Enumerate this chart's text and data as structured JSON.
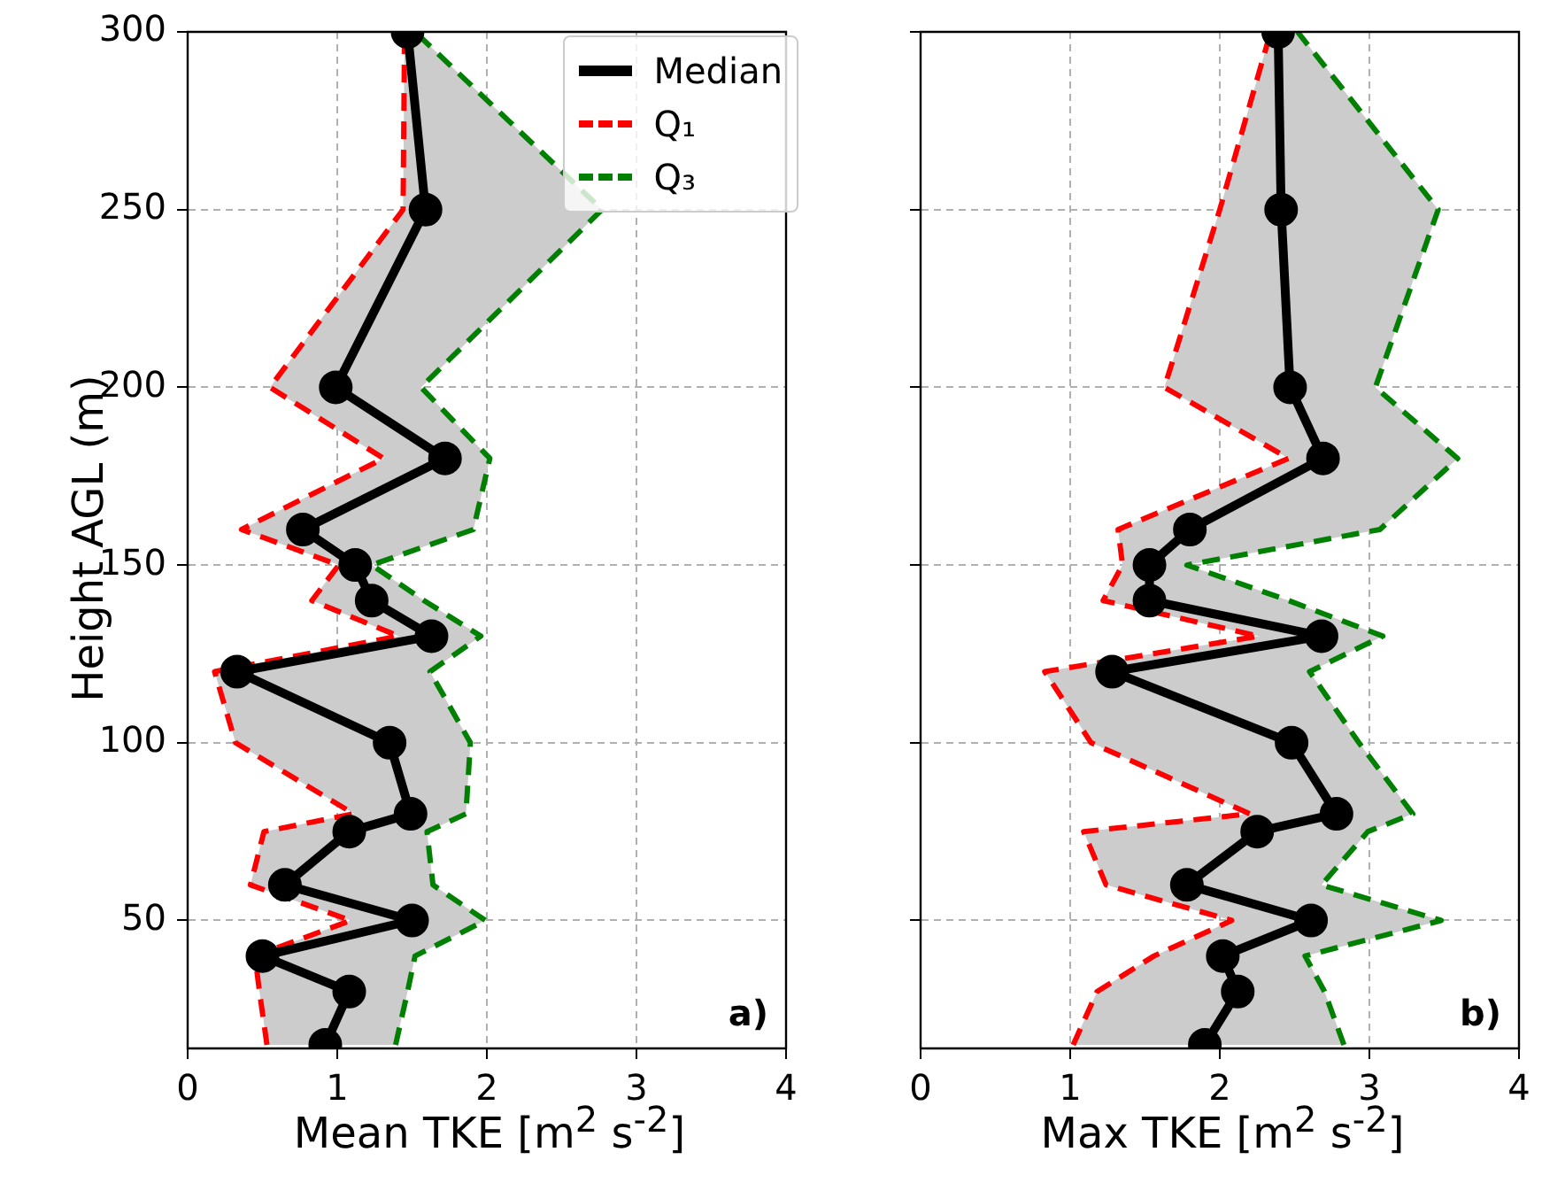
{
  "chart_data": [
    {
      "type": "line",
      "orientation": "horizontal",
      "ylabel": "Height AGL (m)",
      "xlabel": "Mean TKE [m$^{2}$ s$^{-2}$]",
      "xlim": [
        0,
        4
      ],
      "xticks": [
        0,
        1,
        2,
        3,
        4
      ],
      "ylim": [
        14,
        300
      ],
      "yticks": [
        50,
        100,
        150,
        200,
        250,
        300
      ],
      "grid": true,
      "legend": "top right",
      "annotations": [
        "a)"
      ],
      "series": [
        {
          "name": "Median",
          "color": "#000000",
          "marker": "circle",
          "line_style": "solid",
          "x": [
            15,
            30,
            40,
            50,
            60,
            75,
            80,
            100,
            120,
            130,
            140,
            150,
            160,
            180,
            200,
            250,
            300
          ],
          "values": [
            0.92,
            1.08,
            0.5,
            1.5,
            0.65,
            1.08,
            1.49,
            1.35,
            0.33,
            1.63,
            1.23,
            1.12,
            0.77,
            1.72,
            0.99,
            1.59,
            1.47
          ],
          "lower": [
            0.53,
            0.48,
            0.45,
            1.09,
            0.42,
            0.51,
            1.11,
            0.32,
            0.18,
            1.41,
            0.83,
            1.01,
            0.36,
            1.31,
            0.55,
            1.44,
            1.45
          ],
          "upper": [
            1.39,
            1.47,
            1.52,
            1.99,
            1.64,
            1.6,
            1.86,
            1.89,
            1.62,
            1.96,
            1.58,
            1.23,
            1.91,
            2.02,
            1.56,
            2.77,
            1.52
          ]
        },
        {
          "name": "Q₁",
          "color": "#ff0000",
          "marker": "none",
          "line_style": "dashed",
          "x": [
            15,
            30,
            40,
            50,
            60,
            75,
            80,
            100,
            120,
            130,
            140,
            150,
            160,
            180,
            200,
            250,
            300
          ],
          "values": [
            0.53,
            0.48,
            0.45,
            1.09,
            0.42,
            0.51,
            1.11,
            0.32,
            0.18,
            1.41,
            0.83,
            1.01,
            0.36,
            1.31,
            0.55,
            1.44,
            1.45
          ]
        },
        {
          "name": "Q₃",
          "color": "#008000",
          "marker": "none",
          "line_style": "dashed",
          "x": [
            15,
            30,
            40,
            50,
            60,
            75,
            80,
            100,
            120,
            130,
            140,
            150,
            160,
            180,
            200,
            250,
            300
          ],
          "values": [
            1.39,
            1.47,
            1.52,
            1.99,
            1.64,
            1.6,
            1.86,
            1.89,
            1.62,
            1.96,
            1.58,
            1.23,
            1.91,
            2.02,
            1.56,
            2.77,
            1.52
          ]
        }
      ]
    },
    {
      "type": "line",
      "orientation": "horizontal",
      "xlabel": "Max TKE [m$^{2}$ s$^{-2}$]",
      "xlim": [
        0,
        4
      ],
      "xticks": [
        0,
        1,
        2,
        3,
        4
      ],
      "ylim": [
        14,
        300
      ],
      "yticks": [
        50,
        100,
        150,
        200,
        250,
        300
      ],
      "grid": true,
      "tick_labels": "x",
      "annotations": [
        "b)"
      ],
      "series": [
        {
          "color": "#000000",
          "marker": "circle",
          "line_style": "solid",
          "x": [
            15,
            30,
            40,
            50,
            60,
            75,
            80,
            100,
            120,
            130,
            140,
            150,
            160,
            180,
            200,
            250,
            300
          ],
          "values": [
            1.9,
            2.12,
            2.02,
            2.61,
            1.78,
            2.25,
            2.78,
            2.48,
            1.28,
            2.68,
            1.53,
            1.53,
            1.8,
            2.69,
            2.47,
            2.41,
            2.39
          ],
          "lower": [
            1.02,
            1.18,
            1.56,
            2.08,
            1.24,
            1.09,
            2.2,
            1.14,
            0.83,
            2.26,
            1.22,
            1.35,
            1.32,
            2.46,
            1.63,
            2.0,
            2.34
          ],
          "upper": [
            2.83,
            2.7,
            2.57,
            3.48,
            2.68,
            2.99,
            3.29,
            2.93,
            2.6,
            3.09,
            2.46,
            1.78,
            3.07,
            3.59,
            3.04,
            3.46,
            2.52
          ]
        },
        {
          "color": "#ff0000",
          "marker": "none",
          "line_style": "dashed",
          "x": [
            15,
            30,
            40,
            50,
            60,
            75,
            80,
            100,
            120,
            130,
            140,
            150,
            160,
            180,
            200,
            250,
            300
          ],
          "values": [
            1.02,
            1.18,
            1.56,
            2.08,
            1.24,
            1.09,
            2.2,
            1.14,
            0.83,
            2.26,
            1.22,
            1.35,
            1.32,
            2.46,
            1.63,
            2.0,
            2.34
          ]
        },
        {
          "color": "#008000",
          "marker": "none",
          "line_style": "dashed",
          "x": [
            15,
            30,
            40,
            50,
            60,
            75,
            80,
            100,
            120,
            130,
            140,
            150,
            160,
            180,
            200,
            250,
            300
          ],
          "values": [
            2.83,
            2.7,
            2.57,
            3.48,
            2.68,
            2.99,
            3.29,
            2.93,
            2.6,
            3.09,
            2.46,
            1.78,
            3.07,
            3.59,
            3.04,
            3.46,
            2.52
          ]
        }
      ]
    }
  ]
}
